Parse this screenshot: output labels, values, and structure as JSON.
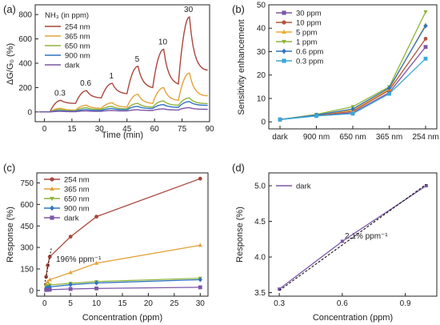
{
  "chart_data": [
    {
      "panel": "(a)",
      "type": "line",
      "xlabel": "Time (min)",
      "ylabel": "ΔG/G₀ (%)",
      "xlim": [
        -5,
        90
      ],
      "ylim": [
        -80,
        880
      ],
      "xticks": [
        0,
        15,
        30,
        45,
        60,
        75,
        90
      ],
      "yticks": [
        0,
        200,
        400,
        600,
        800
      ],
      "legend_title": "NH₃ (in ppm)",
      "legend_position": "top-left",
      "pulse_labels": [
        "0.3",
        "0.6",
        "1",
        "5",
        "10",
        "30"
      ],
      "series": [
        {
          "name": "254 nm",
          "color": "#a8473d",
          "peaks": [
            95,
            175,
            235,
            375,
            515,
            780
          ],
          "base": [
            70,
            115,
            150,
            200,
            230,
            350
          ]
        },
        {
          "name": "365 nm",
          "color": "#e3a23a",
          "peaks": [
            30,
            55,
            75,
            145,
            200,
            320
          ],
          "base": [
            15,
            30,
            40,
            70,
            95,
            135
          ]
        },
        {
          "name": "650 nm",
          "color": "#8fb43a",
          "peaks": [
            20,
            35,
            45,
            70,
            90,
            115
          ],
          "base": [
            10,
            20,
            25,
            40,
            55,
            70
          ]
        },
        {
          "name": "900 nm",
          "color": "#2f74c0",
          "peaks": [
            10,
            20,
            28,
            45,
            60,
            85
          ],
          "base": [
            5,
            12,
            18,
            28,
            38,
            55
          ]
        },
        {
          "name": "dark",
          "color": "#7b56a8",
          "peaks": [
            5,
            8,
            12,
            18,
            25,
            35
          ],
          "base": [
            2,
            5,
            8,
            12,
            16,
            22
          ]
        }
      ]
    },
    {
      "panel": "(b)",
      "type": "line",
      "xlabel": "",
      "ylabel": "Sensitivity enhancement",
      "categories": [
        "dark",
        "900 nm",
        "650 nm",
        "365 nm",
        "254 nm"
      ],
      "ylim": [
        -3,
        50
      ],
      "yticks": [
        0,
        10,
        20,
        30,
        40,
        50
      ],
      "legend_position": "top-left",
      "series": [
        {
          "name": "30 ppm",
          "color": "#7b56a8",
          "marker": "square",
          "values": [
            1,
            2.6,
            3.9,
            12.5,
            32
          ]
        },
        {
          "name": "10 ppm",
          "color": "#b0553a",
          "marker": "circle",
          "values": [
            1,
            2.8,
            4.5,
            13.5,
            35.5
          ]
        },
        {
          "name": "5 ppm",
          "color": "#f0a830",
          "marker": "triangle-up",
          "values": [
            1,
            3.0,
            5.0,
            14.0,
            41.5
          ]
        },
        {
          "name": "1 ppm",
          "color": "#8fb43a",
          "marker": "triangle-down",
          "values": [
            1,
            3.2,
            6.5,
            15.0,
            47.0
          ]
        },
        {
          "name": "0.6 ppm",
          "color": "#2f74c0",
          "marker": "diamond",
          "values": [
            1,
            2.9,
            5.5,
            14.5,
            41.0
          ]
        },
        {
          "name": "0.3 ppm",
          "color": "#3aa8d8",
          "marker": "square",
          "values": [
            1,
            2.5,
            3.5,
            12.0,
            27.0
          ]
        }
      ]
    },
    {
      "panel": "(c)",
      "type": "line",
      "xlabel": "Concentration (ppm)",
      "ylabel": "Response (%)",
      "xlim": [
        -1.5,
        31.5
      ],
      "ylim": [
        -40,
        820
      ],
      "xticks": [
        0,
        5,
        10,
        15,
        20,
        25,
        30
      ],
      "yticks": [
        0,
        150,
        300,
        450,
        600,
        750
      ],
      "legend_position": "top-left",
      "annotation": "196% ppm⁻¹",
      "x": [
        0.3,
        0.6,
        1,
        5,
        10,
        30
      ],
      "series": [
        {
          "name": "254 nm",
          "color": "#a8473d",
          "marker": "circle",
          "values": [
            95,
            175,
            235,
            375,
            515,
            780
          ]
        },
        {
          "name": "365 nm",
          "color": "#e3a23a",
          "marker": "triangle-up",
          "values": [
            45,
            60,
            75,
            125,
            190,
            315
          ]
        },
        {
          "name": "650 nm",
          "color": "#8fb43a",
          "marker": "triangle-down",
          "values": [
            25,
            32,
            38,
            50,
            62,
            85
          ]
        },
        {
          "name": "900 nm",
          "color": "#2f74c0",
          "marker": "diamond",
          "values": [
            15,
            20,
            25,
            40,
            52,
            75
          ]
        },
        {
          "name": "dark",
          "color": "#7b56a8",
          "marker": "square",
          "values": [
            3.5,
            4.2,
            5.0,
            10,
            14,
            22
          ]
        }
      ],
      "fit": {
        "color": "#111111",
        "x": [
          0,
          1.3
        ],
        "y": [
          40,
          295
        ]
      }
    },
    {
      "panel": "(d)",
      "type": "line",
      "xlabel": "Concentration (ppm)",
      "ylabel": "Response (%)",
      "xlim": [
        0.25,
        1.05
      ],
      "ylim": [
        3.45,
        5.18
      ],
      "xticks": [
        0.3,
        0.6,
        0.9
      ],
      "yticks": [
        3.5,
        4.0,
        4.5,
        5.0
      ],
      "legend_position": "top-left",
      "annotation": "2.1% ppm⁻¹",
      "series": [
        {
          "name": "dark",
          "color": "#7b56a8",
          "x": [
            0.3,
            0.6,
            1.0
          ],
          "values": [
            3.55,
            4.22,
            5.0
          ]
        }
      ],
      "fit": {
        "color": "#111111",
        "x": [
          0.3,
          1.0
        ],
        "y": [
          3.53,
          5.02
        ]
      }
    }
  ]
}
